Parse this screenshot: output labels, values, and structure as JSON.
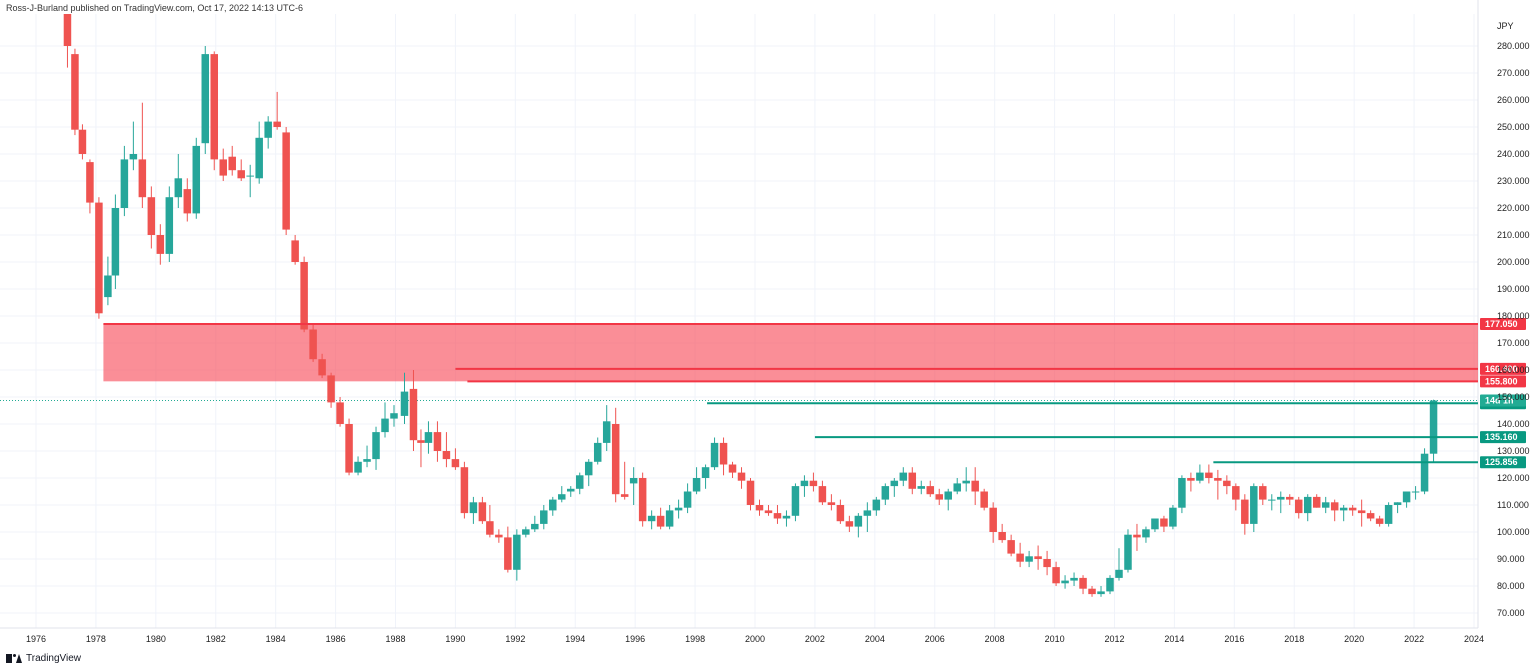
{
  "header": {
    "published": "Ross-J-Burland published on TradingView.com, Oct 17, 2022 14:13 UTC-6"
  },
  "logo": {
    "text": "TradingView"
  },
  "colors": {
    "up": "#26a69a",
    "down": "#ef5350",
    "zone": "#f7525f",
    "resistance": "#f23645",
    "support": "#089981",
    "lastprice": "#22ab94"
  },
  "chart_data": {
    "type": "candlestick",
    "currency_label": "JPY",
    "interval": "quarterly",
    "ylim": [
      70,
      290
    ],
    "xlim": [
      1975.2,
      2025.5
    ],
    "x_ticks": [
      "1976",
      "1978",
      "1980",
      "1982",
      "1984",
      "1986",
      "1988",
      "1990",
      "1992",
      "1994",
      "1996",
      "1998",
      "2000",
      "2002",
      "2004",
      "2006",
      "2008",
      "2010",
      "2012",
      "2014",
      "2016",
      "2018",
      "2020",
      "2022",
      "2024"
    ],
    "y_ticks": [
      "70.000",
      "80.000",
      "90.000",
      "100.000",
      "110.000",
      "120.000",
      "130.000",
      "140.000",
      "150.000",
      "160.000",
      "170.000",
      "180.000",
      "190.000",
      "200.000",
      "210.000",
      "220.000",
      "230.000",
      "240.000",
      "250.000",
      "260.000",
      "270.000",
      "280.000"
    ],
    "candles": [
      {
        "t": 1977.05,
        "o": 300,
        "h": 305,
        "l": 272,
        "c": 280
      },
      {
        "t": 1977.3,
        "o": 277,
        "h": 279,
        "l": 247,
        "c": 249
      },
      {
        "t": 1977.55,
        "o": 249,
        "h": 251,
        "l": 238,
        "c": 240
      },
      {
        "t": 1977.8,
        "o": 237,
        "h": 238,
        "l": 218,
        "c": 222
      },
      {
        "t": 1978.1,
        "o": 222,
        "h": 224,
        "l": 179,
        "c": 181
      },
      {
        "t": 1978.4,
        "o": 187,
        "h": 202,
        "l": 184,
        "c": 195
      },
      {
        "t": 1978.65,
        "o": 195,
        "h": 225,
        "l": 190,
        "c": 220
      },
      {
        "t": 1978.95,
        "o": 220,
        "h": 243,
        "l": 217,
        "c": 238
      },
      {
        "t": 1979.25,
        "o": 238,
        "h": 252,
        "l": 234,
        "c": 240
      },
      {
        "t": 1979.55,
        "o": 238,
        "h": 259,
        "l": 220,
        "c": 224
      },
      {
        "t": 1979.85,
        "o": 224,
        "h": 228,
        "l": 205,
        "c": 210
      },
      {
        "t": 1980.15,
        "o": 210,
        "h": 214,
        "l": 199,
        "c": 203
      },
      {
        "t": 1980.45,
        "o": 203,
        "h": 228,
        "l": 200,
        "c": 224
      },
      {
        "t": 1980.75,
        "o": 224,
        "h": 240,
        "l": 220,
        "c": 231
      },
      {
        "t": 1981.05,
        "o": 227,
        "h": 231,
        "l": 215,
        "c": 218
      },
      {
        "t": 1981.35,
        "o": 218,
        "h": 246,
        "l": 216,
        "c": 243
      },
      {
        "t": 1981.65,
        "o": 244,
        "h": 280,
        "l": 240,
        "c": 277
      },
      {
        "t": 1981.95,
        "o": 277,
        "h": 278,
        "l": 234,
        "c": 238
      },
      {
        "t": 1982.25,
        "o": 238,
        "h": 242,
        "l": 230,
        "c": 232
      },
      {
        "t": 1982.55,
        "o": 239,
        "h": 243,
        "l": 232,
        "c": 234
      },
      {
        "t": 1982.85,
        "o": 234,
        "h": 238,
        "l": 230,
        "c": 231
      },
      {
        "t": 1983.15,
        "o": 232,
        "h": 236,
        "l": 224,
        "c": 232
      },
      {
        "t": 1983.45,
        "o": 231,
        "h": 252,
        "l": 229,
        "c": 246
      },
      {
        "t": 1983.75,
        "o": 246,
        "h": 254,
        "l": 242,
        "c": 252
      },
      {
        "t": 1984.05,
        "o": 252,
        "h": 263,
        "l": 249,
        "c": 250
      },
      {
        "t": 1984.35,
        "o": 248,
        "h": 250,
        "l": 210,
        "c": 212
      },
      {
        "t": 1984.65,
        "o": 208,
        "h": 210,
        "l": 199,
        "c": 200
      },
      {
        "t": 1984.95,
        "o": 200,
        "h": 202,
        "l": 174,
        "c": 175
      },
      {
        "t": 1985.25,
        "o": 175,
        "h": 177,
        "l": 163,
        "c": 164
      },
      {
        "t": 1985.55,
        "o": 164,
        "h": 166,
        "l": 157,
        "c": 158
      },
      {
        "t": 1985.85,
        "o": 158,
        "h": 159,
        "l": 146,
        "c": 148
      },
      {
        "t": 1986.15,
        "o": 148,
        "h": 150,
        "l": 139,
        "c": 140
      },
      {
        "t": 1986.45,
        "o": 140,
        "h": 142,
        "l": 121,
        "c": 122
      },
      {
        "t": 1986.75,
        "o": 122,
        "h": 128,
        "l": 121,
        "c": 126
      },
      {
        "t": 1987.05,
        "o": 126,
        "h": 132,
        "l": 124,
        "c": 127
      },
      {
        "t": 1987.35,
        "o": 127,
        "h": 139,
        "l": 123,
        "c": 137
      },
      {
        "t": 1987.65,
        "o": 137,
        "h": 148,
        "l": 135,
        "c": 142
      },
      {
        "t": 1987.95,
        "o": 142,
        "h": 147,
        "l": 139,
        "c": 144
      },
      {
        "t": 1988.3,
        "o": 143,
        "h": 159,
        "l": 140,
        "c": 152
      },
      {
        "t": 1988.6,
        "o": 153,
        "h": 160,
        "l": 130,
        "c": 134
      },
      {
        "t": 1988.85,
        "o": 134,
        "h": 138,
        "l": 124,
        "c": 133
      },
      {
        "t": 1989.1,
        "o": 133,
        "h": 141,
        "l": 129,
        "c": 137
      },
      {
        "t": 1989.4,
        "o": 137,
        "h": 141,
        "l": 126,
        "c": 130
      },
      {
        "t": 1989.7,
        "o": 130,
        "h": 137,
        "l": 124,
        "c": 127
      },
      {
        "t": 1990.0,
        "o": 127,
        "h": 131,
        "l": 123,
        "c": 124
      },
      {
        "t": 1990.3,
        "o": 124,
        "h": 126,
        "l": 105,
        "c": 107
      },
      {
        "t": 1990.6,
        "o": 107,
        "h": 113,
        "l": 103,
        "c": 111
      },
      {
        "t": 1990.9,
        "o": 111,
        "h": 113,
        "l": 103,
        "c": 104
      },
      {
        "t": 1991.15,
        "o": 104,
        "h": 110,
        "l": 98,
        "c": 99
      },
      {
        "t": 1991.45,
        "o": 99,
        "h": 101,
        "l": 96,
        "c": 98
      },
      {
        "t": 1991.75,
        "o": 98,
        "h": 102,
        "l": 85,
        "c": 86
      },
      {
        "t": 1992.05,
        "o": 86,
        "h": 101,
        "l": 82,
        "c": 99
      },
      {
        "t": 1992.35,
        "o": 99,
        "h": 102,
        "l": 98,
        "c": 101
      },
      {
        "t": 1992.65,
        "o": 101,
        "h": 106,
        "l": 100,
        "c": 103
      },
      {
        "t": 1992.95,
        "o": 103,
        "h": 110,
        "l": 101,
        "c": 108
      },
      {
        "t": 1993.25,
        "o": 108,
        "h": 113,
        "l": 106,
        "c": 112
      },
      {
        "t": 1993.55,
        "o": 112,
        "h": 117,
        "l": 111,
        "c": 114
      },
      {
        "t": 1993.85,
        "o": 115,
        "h": 117,
        "l": 113,
        "c": 116
      },
      {
        "t": 1994.15,
        "o": 116,
        "h": 122,
        "l": 114,
        "c": 121
      },
      {
        "t": 1994.45,
        "o": 121,
        "h": 127,
        "l": 117,
        "c": 126
      },
      {
        "t": 1994.75,
        "o": 126,
        "h": 135,
        "l": 125,
        "c": 133
      },
      {
        "t": 1995.05,
        "o": 133,
        "h": 147,
        "l": 130,
        "c": 141
      },
      {
        "t": 1995.35,
        "o": 140,
        "h": 146,
        "l": 111,
        "c": 114
      },
      {
        "t": 1995.65,
        "o": 114,
        "h": 126,
        "l": 112,
        "c": 113
      },
      {
        "t": 1995.95,
        "o": 118,
        "h": 124,
        "l": 110,
        "c": 120
      },
      {
        "t": 1996.25,
        "o": 120,
        "h": 122,
        "l": 102,
        "c": 104
      },
      {
        "t": 1996.55,
        "o": 104,
        "h": 108,
        "l": 101,
        "c": 106
      },
      {
        "t": 1996.85,
        "o": 106,
        "h": 109,
        "l": 101,
        "c": 102
      },
      {
        "t": 1997.15,
        "o": 102,
        "h": 110,
        "l": 101,
        "c": 108
      },
      {
        "t": 1997.45,
        "o": 108,
        "h": 112,
        "l": 105,
        "c": 109
      },
      {
        "t": 1997.75,
        "o": 109,
        "h": 118,
        "l": 107,
        "c": 115
      },
      {
        "t": 1998.05,
        "o": 115,
        "h": 124,
        "l": 114,
        "c": 120
      },
      {
        "t": 1998.35,
        "o": 120,
        "h": 125,
        "l": 116,
        "c": 124
      },
      {
        "t": 1998.65,
        "o": 124,
        "h": 135,
        "l": 123,
        "c": 133
      },
      {
        "t": 1998.95,
        "o": 133,
        "h": 135,
        "l": 121,
        "c": 125
      },
      {
        "t": 1999.25,
        "o": 125,
        "h": 126,
        "l": 120,
        "c": 122
      },
      {
        "t": 1999.55,
        "o": 122,
        "h": 124,
        "l": 116,
        "c": 119
      },
      {
        "t": 1999.85,
        "o": 119,
        "h": 120,
        "l": 108,
        "c": 110
      },
      {
        "t": 2000.15,
        "o": 110,
        "h": 112,
        "l": 106,
        "c": 108
      },
      {
        "t": 2000.45,
        "o": 108,
        "h": 110,
        "l": 106,
        "c": 107
      },
      {
        "t": 2000.75,
        "o": 107,
        "h": 110,
        "l": 103,
        "c": 105
      },
      {
        "t": 2001.05,
        "o": 105,
        "h": 108,
        "l": 102,
        "c": 106
      },
      {
        "t": 2001.35,
        "o": 106,
        "h": 118,
        "l": 104,
        "c": 117
      },
      {
        "t": 2001.65,
        "o": 117,
        "h": 121,
        "l": 113,
        "c": 119
      },
      {
        "t": 2001.95,
        "o": 119,
        "h": 122,
        "l": 115,
        "c": 117
      },
      {
        "t": 2002.25,
        "o": 117,
        "h": 119,
        "l": 110,
        "c": 111
      },
      {
        "t": 2002.55,
        "o": 111,
        "h": 114,
        "l": 108,
        "c": 110
      },
      {
        "t": 2002.85,
        "o": 110,
        "h": 112,
        "l": 103,
        "c": 104
      },
      {
        "t": 2003.15,
        "o": 104,
        "h": 106,
        "l": 100,
        "c": 102
      },
      {
        "t": 2003.45,
        "o": 102,
        "h": 107,
        "l": 98,
        "c": 106
      },
      {
        "t": 2003.75,
        "o": 106,
        "h": 111,
        "l": 100,
        "c": 108
      },
      {
        "t": 2004.05,
        "o": 108,
        "h": 113,
        "l": 106,
        "c": 112
      },
      {
        "t": 2004.35,
        "o": 112,
        "h": 118,
        "l": 110,
        "c": 117
      },
      {
        "t": 2004.65,
        "o": 117,
        "h": 120,
        "l": 113,
        "c": 119
      },
      {
        "t": 2004.95,
        "o": 119,
        "h": 124,
        "l": 117,
        "c": 122
      },
      {
        "t": 2005.25,
        "o": 122,
        "h": 124,
        "l": 114,
        "c": 116
      },
      {
        "t": 2005.55,
        "o": 116,
        "h": 119,
        "l": 114,
        "c": 117
      },
      {
        "t": 2005.85,
        "o": 117,
        "h": 119,
        "l": 113,
        "c": 114
      },
      {
        "t": 2006.15,
        "o": 114,
        "h": 116,
        "l": 110,
        "c": 112
      },
      {
        "t": 2006.45,
        "o": 112,
        "h": 116,
        "l": 108,
        "c": 115
      },
      {
        "t": 2006.75,
        "o": 115,
        "h": 120,
        "l": 114,
        "c": 118
      },
      {
        "t": 2007.05,
        "o": 118,
        "h": 124,
        "l": 115,
        "c": 119
      },
      {
        "t": 2007.35,
        "o": 119,
        "h": 124,
        "l": 110,
        "c": 115
      },
      {
        "t": 2007.65,
        "o": 115,
        "h": 116,
        "l": 108,
        "c": 109
      },
      {
        "t": 2007.95,
        "o": 109,
        "h": 111,
        "l": 96,
        "c": 100
      },
      {
        "t": 2008.25,
        "o": 100,
        "h": 103,
        "l": 96,
        "c": 97
      },
      {
        "t": 2008.55,
        "o": 97,
        "h": 99,
        "l": 91,
        "c": 92
      },
      {
        "t": 2008.85,
        "o": 92,
        "h": 96,
        "l": 87,
        "c": 89
      },
      {
        "t": 2009.15,
        "o": 89,
        "h": 93,
        "l": 87,
        "c": 91
      },
      {
        "t": 2009.45,
        "o": 91,
        "h": 95,
        "l": 86,
        "c": 90
      },
      {
        "t": 2009.75,
        "o": 90,
        "h": 93,
        "l": 84,
        "c": 87
      },
      {
        "t": 2010.05,
        "o": 87,
        "h": 89,
        "l": 80,
        "c": 81
      },
      {
        "t": 2010.35,
        "o": 81,
        "h": 84,
        "l": 79,
        "c": 82
      },
      {
        "t": 2010.65,
        "o": 82,
        "h": 85,
        "l": 80,
        "c": 83
      },
      {
        "t": 2010.95,
        "o": 83,
        "h": 84,
        "l": 77,
        "c": 79
      },
      {
        "t": 2011.25,
        "o": 79,
        "h": 80,
        "l": 76,
        "c": 77
      },
      {
        "t": 2011.55,
        "o": 77,
        "h": 80,
        "l": 76,
        "c": 78
      },
      {
        "t": 2011.85,
        "o": 78,
        "h": 84,
        "l": 77,
        "c": 83
      },
      {
        "t": 2012.15,
        "o": 83,
        "h": 94,
        "l": 82,
        "c": 86
      },
      {
        "t": 2012.45,
        "o": 86,
        "h": 101,
        "l": 85,
        "c": 99
      },
      {
        "t": 2012.75,
        "o": 99,
        "h": 103,
        "l": 93,
        "c": 98
      },
      {
        "t": 2013.05,
        "o": 98,
        "h": 102,
        "l": 96,
        "c": 101
      },
      {
        "t": 2013.35,
        "o": 101,
        "h": 105,
        "l": 100,
        "c": 105
      },
      {
        "t": 2013.65,
        "o": 105,
        "h": 106,
        "l": 100,
        "c": 102
      },
      {
        "t": 2013.95,
        "o": 102,
        "h": 110,
        "l": 101,
        "c": 109
      },
      {
        "t": 2014.25,
        "o": 109,
        "h": 121,
        "l": 107,
        "c": 120
      },
      {
        "t": 2014.55,
        "o": 120,
        "h": 122,
        "l": 115,
        "c": 119
      },
      {
        "t": 2014.85,
        "o": 119,
        "h": 125,
        "l": 118,
        "c": 122
      },
      {
        "t": 2015.15,
        "o": 122,
        "h": 125,
        "l": 118,
        "c": 120
      },
      {
        "t": 2015.45,
        "o": 120,
        "h": 123,
        "l": 112,
        "c": 119
      },
      {
        "t": 2015.75,
        "o": 119,
        "h": 121,
        "l": 114,
        "c": 117
      },
      {
        "t": 2016.05,
        "o": 117,
        "h": 118,
        "l": 108,
        "c": 112
      },
      {
        "t": 2016.35,
        "o": 112,
        "h": 114,
        "l": 99,
        "c": 103
      },
      {
        "t": 2016.65,
        "o": 103,
        "h": 118,
        "l": 100,
        "c": 117
      },
      {
        "t": 2016.95,
        "o": 117,
        "h": 118,
        "l": 110,
        "c": 112
      },
      {
        "t": 2017.25,
        "o": 112,
        "h": 114,
        "l": 108,
        "c": 112
      },
      {
        "t": 2017.55,
        "o": 112,
        "h": 115,
        "l": 107,
        "c": 113
      },
      {
        "t": 2017.85,
        "o": 113,
        "h": 114,
        "l": 110,
        "c": 112
      },
      {
        "t": 2018.15,
        "o": 112,
        "h": 113,
        "l": 105,
        "c": 107
      },
      {
        "t": 2018.45,
        "o": 107,
        "h": 114,
        "l": 104,
        "c": 113
      },
      {
        "t": 2018.75,
        "o": 113,
        "h": 114,
        "l": 109,
        "c": 109
      },
      {
        "t": 2019.05,
        "o": 109,
        "h": 113,
        "l": 107,
        "c": 111
      },
      {
        "t": 2019.35,
        "o": 111,
        "h": 112,
        "l": 104,
        "c": 108
      },
      {
        "t": 2019.65,
        "o": 108,
        "h": 110,
        "l": 104,
        "c": 109
      },
      {
        "t": 2019.95,
        "o": 109,
        "h": 110,
        "l": 106,
        "c": 108
      },
      {
        "t": 2020.25,
        "o": 108,
        "h": 112,
        "l": 102,
        "c": 107
      },
      {
        "t": 2020.55,
        "o": 107,
        "h": 108,
        "l": 104,
        "c": 105
      },
      {
        "t": 2020.85,
        "o": 105,
        "h": 106,
        "l": 102,
        "c": 103
      },
      {
        "t": 2021.15,
        "o": 103,
        "h": 111,
        "l": 102,
        "c": 110
      },
      {
        "t": 2021.45,
        "o": 110,
        "h": 111,
        "l": 107,
        "c": 111
      },
      {
        "t": 2021.75,
        "o": 111,
        "h": 115,
        "l": 109,
        "c": 115
      },
      {
        "t": 2022.05,
        "o": 115,
        "h": 117,
        "l": 112,
        "c": 115
      },
      {
        "t": 2022.35,
        "o": 115,
        "h": 131,
        "l": 114,
        "c": 129
      },
      {
        "t": 2022.65,
        "o": 129,
        "h": 149,
        "l": 126,
        "c": 148.7
      }
    ],
    "resistance_zone": {
      "from_x": 1978.25,
      "top": 177.05,
      "bottom": 155.8
    },
    "horizontal_lines": [
      {
        "level": 177.05,
        "from_x": 1978.25,
        "type": "resistance",
        "label": "177.050"
      },
      {
        "level": 160.4,
        "from_x": 1990.0,
        "type": "resistance",
        "label": "160.400"
      },
      {
        "level": 155.8,
        "from_x": 1990.4,
        "type": "resistance",
        "label": "155.800"
      },
      {
        "level": 147.67,
        "from_x": 1998.4,
        "type": "support",
        "label": "147.670"
      },
      {
        "level": 135.16,
        "from_x": 2002.0,
        "type": "support",
        "label": "135.160"
      },
      {
        "level": 125.856,
        "from_x": 2015.3,
        "type": "support",
        "label": "125.856"
      }
    ],
    "last_price": {
      "level": 148.7,
      "countdown": "14d 1h"
    }
  }
}
